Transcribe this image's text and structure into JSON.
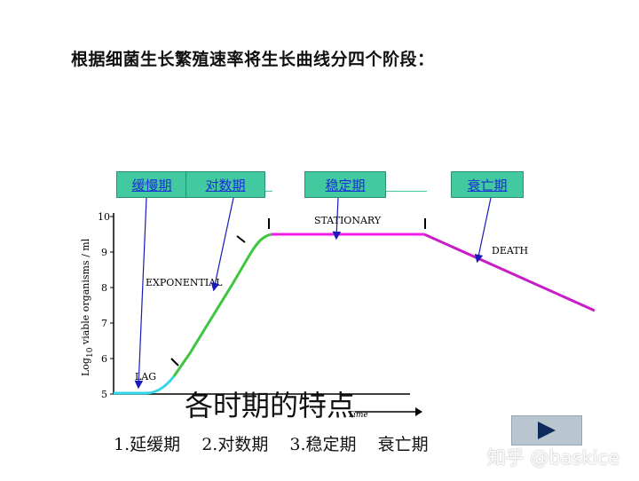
{
  "heading": "根据细菌生长繁殖速率将生长曲线分四个阶段：",
  "phase_boxes": [
    "缓慢期",
    "对数期",
    "稳定期",
    "衰亡期"
  ],
  "chart": {
    "y_axis_label_main": "Log",
    "y_axis_label_sub": "10",
    "y_axis_label_rest": " viable organisms / ml",
    "x_axis_label": "Time",
    "y_ticks": [
      "5",
      "6",
      "7",
      "8",
      "9",
      "10"
    ],
    "phase_labels": {
      "lag": "LAG",
      "exponential": "EXPONENTIAL",
      "stationary": "STATIONARY",
      "death": "DEATH"
    },
    "colors": {
      "lag": "#33d6e6",
      "exponential": "#3fc63f",
      "stationary": "#ee1ee6",
      "death": "#c81ec8",
      "arrow": "#1a1ab8"
    }
  },
  "big_title": "各时期的特点",
  "phase_list": [
    "1.延缓期",
    "2.对数期",
    "3.稳定期",
    "衰亡期"
  ],
  "watermark": "知乎 @baskice",
  "play_icon": "play-icon"
}
